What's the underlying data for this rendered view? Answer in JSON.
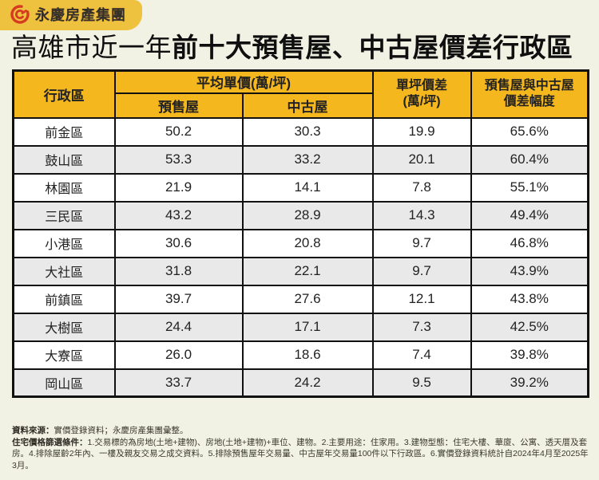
{
  "colors": {
    "background": "#f2f2e4",
    "banner_yellow": "#eec23f",
    "header_yellow": "#f5b71e",
    "row_alt_gray": "#e9e9e9",
    "logo_red": "#d63a20",
    "border_black": "#111111"
  },
  "logo": {
    "icon": "yungching-spiral-icon",
    "brand": "永慶房產集團"
  },
  "title": {
    "normal": "高雄市近一年",
    "bold": "前十大預售屋、中古屋價差行政區"
  },
  "table": {
    "headers": {
      "district": "行政區",
      "avg_price_group": "平均單價(萬/坪)",
      "presale": "預售屋",
      "existing": "中古屋",
      "unit_diff_line1": "單坪價差",
      "unit_diff_line2": "(萬/坪)",
      "gap_line1": "預售屋與中古屋",
      "gap_line2": "價差幅度"
    },
    "rows": [
      {
        "district": "前金區",
        "presale": "50.2",
        "existing": "30.3",
        "diff": "19.9",
        "pct": "65.6%"
      },
      {
        "district": "鼓山區",
        "presale": "53.3",
        "existing": "33.2",
        "diff": "20.1",
        "pct": "60.4%"
      },
      {
        "district": "林園區",
        "presale": "21.9",
        "existing": "14.1",
        "diff": "7.8",
        "pct": "55.1%"
      },
      {
        "district": "三民區",
        "presale": "43.2",
        "existing": "28.9",
        "diff": "14.3",
        "pct": "49.4%"
      },
      {
        "district": "小港區",
        "presale": "30.6",
        "existing": "20.8",
        "diff": "9.7",
        "pct": "46.8%"
      },
      {
        "district": "大社區",
        "presale": "31.8",
        "existing": "22.1",
        "diff": "9.7",
        "pct": "43.9%"
      },
      {
        "district": "前鎮區",
        "presale": "39.7",
        "existing": "27.6",
        "diff": "12.1",
        "pct": "43.8%"
      },
      {
        "district": "大樹區",
        "presale": "24.4",
        "existing": "17.1",
        "diff": "7.3",
        "pct": "42.5%"
      },
      {
        "district": "大寮區",
        "presale": "26.0",
        "existing": "18.6",
        "diff": "7.4",
        "pct": "39.8%"
      },
      {
        "district": "岡山區",
        "presale": "33.7",
        "existing": "24.2",
        "diff": "9.5",
        "pct": "39.2%"
      }
    ]
  },
  "chart_data": {
    "type": "table",
    "title": "高雄市近一年前十大預售屋、中古屋價差行政區",
    "columns": [
      "行政區",
      "平均單價(萬/坪) 預售屋",
      "平均單價(萬/坪) 中古屋",
      "單坪價差(萬/坪)",
      "預售屋與中古屋價差幅度"
    ],
    "categories": [
      "前金區",
      "鼓山區",
      "林園區",
      "三民區",
      "小港區",
      "大社區",
      "前鎮區",
      "大樹區",
      "大寮區",
      "岡山區"
    ],
    "series": [
      {
        "name": "預售屋平均單價(萬/坪)",
        "values": [
          50.2,
          53.3,
          21.9,
          43.2,
          30.6,
          31.8,
          39.7,
          24.4,
          26.0,
          33.7
        ]
      },
      {
        "name": "中古屋平均單價(萬/坪)",
        "values": [
          30.3,
          33.2,
          14.1,
          28.9,
          20.8,
          22.1,
          27.6,
          17.1,
          18.6,
          24.2
        ]
      },
      {
        "name": "單坪價差(萬/坪)",
        "values": [
          19.9,
          20.1,
          7.8,
          14.3,
          9.7,
          9.7,
          12.1,
          7.3,
          7.4,
          9.5
        ]
      },
      {
        "name": "預售屋與中古屋價差幅度(%)",
        "values": [
          65.6,
          60.4,
          55.1,
          49.4,
          46.8,
          43.9,
          43.8,
          42.5,
          39.8,
          39.2
        ]
      }
    ]
  },
  "footer": {
    "source_label": "資料來源：",
    "source_text": "實價登錄資料；永慶房產集團彙整。",
    "criteria_label": "住宅價格篩選條件：",
    "criteria_text": "1.交易標的為房地(土地+建物)、房地(土地+建物)+車位、建物。2.主要用途：住家用。3.建物型態：住宅大樓、華廈、公寓、透天厝及套房。4.排除屋齡2年內、一樓及親友交易之成交資料。5.排除預售屋年交易量、中古屋年交易量100件以下行政區。6.實價登錄資料統計自2024年4月至2025年3月。"
  }
}
